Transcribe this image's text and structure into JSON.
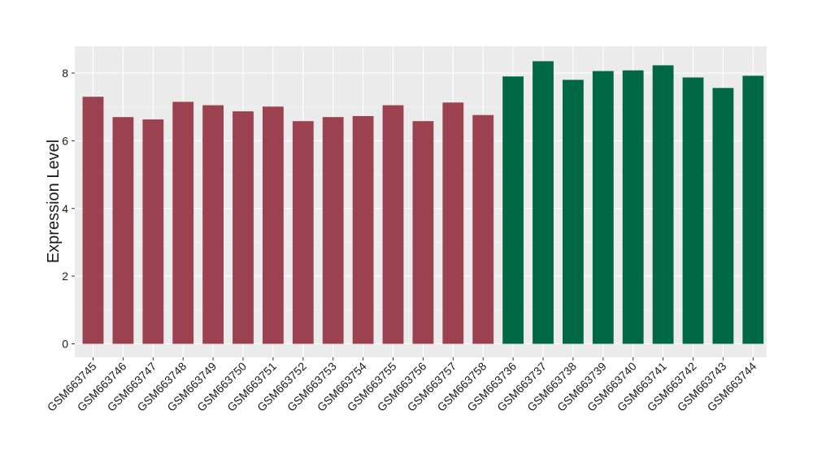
{
  "chart_data": {
    "type": "bar",
    "title": "",
    "xlabel": "",
    "ylabel": "Expression Level",
    "ylim": [
      0,
      8.8
    ],
    "yticks": [
      0,
      2,
      4,
      6,
      8
    ],
    "grid": true,
    "legend": "none",
    "colors": {
      "panel_background": "#ebebeb",
      "grid_major": "#ffffff",
      "group_1": "#9b4150",
      "group_2": "#006845"
    },
    "categories": [
      "GSM663745",
      "GSM663746",
      "GSM663747",
      "GSM663748",
      "GSM663749",
      "GSM663750",
      "GSM663751",
      "GSM663752",
      "GSM663753",
      "GSM663754",
      "GSM663755",
      "GSM663756",
      "GSM663757",
      "GSM663758",
      "GSM663736",
      "GSM663737",
      "GSM663738",
      "GSM663739",
      "GSM663740",
      "GSM663741",
      "GSM663742",
      "GSM663743",
      "GSM663744"
    ],
    "values": [
      7.3,
      6.7,
      6.63,
      7.15,
      7.05,
      6.87,
      7.01,
      6.58,
      6.7,
      6.73,
      7.05,
      6.58,
      7.13,
      6.76,
      7.9,
      8.35,
      7.8,
      8.06,
      8.08,
      8.23,
      7.87,
      7.56,
      7.92
    ],
    "groups": [
      1,
      1,
      1,
      1,
      1,
      1,
      1,
      1,
      1,
      1,
      1,
      1,
      1,
      1,
      2,
      2,
      2,
      2,
      2,
      2,
      2,
      2,
      2
    ]
  }
}
